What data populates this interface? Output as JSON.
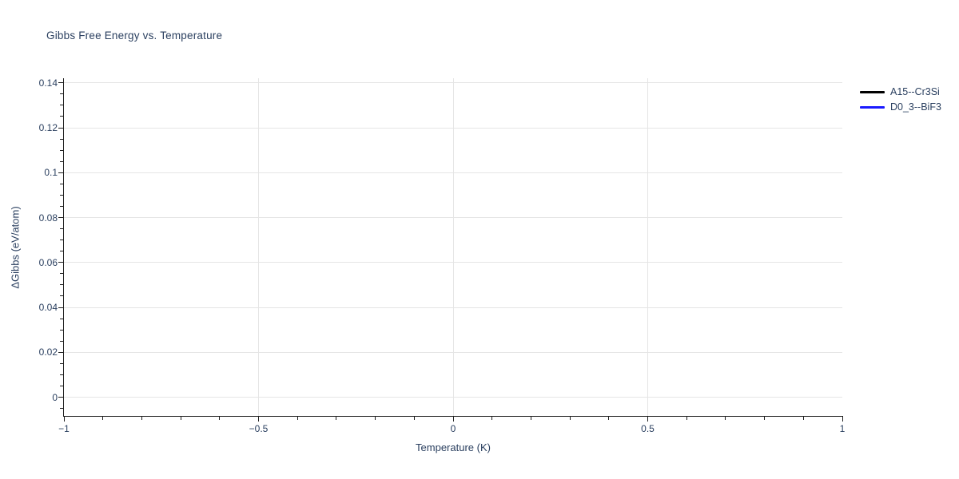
{
  "chart_data": {
    "type": "line",
    "title": "Gibbs Free Energy vs. Temperature",
    "xlabel": "Temperature (K)",
    "ylabel": "ΔGibbs (eV/atom)",
    "xlim": [
      -1,
      1
    ],
    "ylim": [
      -0.0084,
      0.1421
    ],
    "grid": true,
    "legend_position": "top-right-outside",
    "x_axis": {
      "ticks": [
        -1,
        -0.5,
        0,
        0.5,
        1
      ],
      "tick_labels": [
        "−1",
        "−0.5",
        "0",
        "0.5",
        "1"
      ],
      "minor_ticks": [
        -0.9,
        -0.8,
        -0.7,
        -0.6,
        -0.4,
        -0.3,
        -0.2,
        -0.1,
        0.1,
        0.2,
        0.3,
        0.4,
        0.6,
        0.7,
        0.8,
        0.9
      ],
      "gridline_ticks": [
        -0.5,
        0,
        0.5
      ]
    },
    "y_axis": {
      "ticks": [
        0,
        0.02,
        0.04,
        0.06,
        0.08,
        0.1,
        0.12,
        0.14
      ],
      "tick_labels": [
        "0",
        "0.02",
        "0.04",
        "0.06",
        "0.08",
        "0.1",
        "0.12",
        "0.14"
      ],
      "minor_ticks": [
        -0.005,
        0.005,
        0.01,
        0.015,
        0.025,
        0.03,
        0.035,
        0.045,
        0.05,
        0.055,
        0.065,
        0.07,
        0.075,
        0.085,
        0.09,
        0.095,
        0.105,
        0.11,
        0.115,
        0.125,
        0.13,
        0.135
      ],
      "gridline_ticks": [
        0,
        0.02,
        0.04,
        0.06,
        0.08,
        0.1,
        0.12,
        0.14
      ]
    },
    "series": [
      {
        "name": "A15--Cr3Si",
        "color": "#000000",
        "x": [],
        "y": []
      },
      {
        "name": "D0_3--BiF3",
        "color": "#1a1aff",
        "x": [],
        "y": []
      }
    ],
    "plot_area_empty": true,
    "colors": {
      "text": "#2a3f5f",
      "grid": "#e5e5e5",
      "axis": "#1e1e1e",
      "background": "#ffffff"
    }
  }
}
